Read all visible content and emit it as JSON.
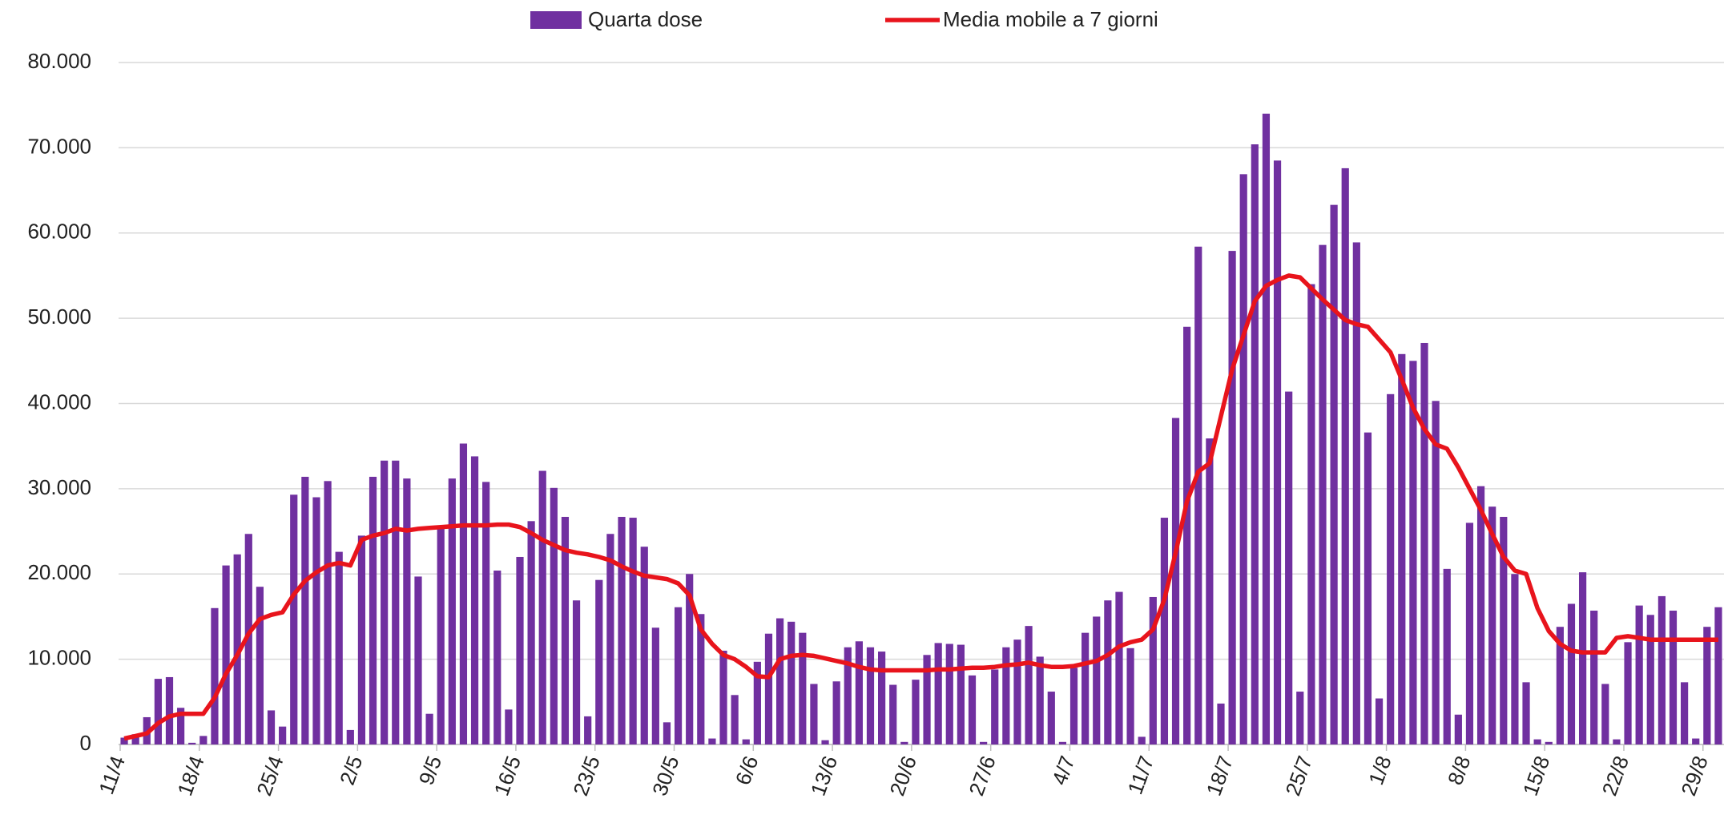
{
  "chart_data": {
    "type": "bar_line",
    "categories": [
      "11/4",
      null,
      null,
      null,
      null,
      null,
      null,
      "18/4",
      null,
      null,
      null,
      null,
      null,
      null,
      "25/4",
      null,
      null,
      null,
      null,
      null,
      null,
      "2/5",
      null,
      null,
      null,
      null,
      null,
      null,
      "9/5",
      null,
      null,
      null,
      null,
      null,
      null,
      "16/5",
      null,
      null,
      null,
      null,
      null,
      null,
      "23/5",
      null,
      null,
      null,
      null,
      null,
      null,
      "30/5",
      null,
      null,
      null,
      null,
      null,
      null,
      "6/6",
      null,
      null,
      null,
      null,
      null,
      null,
      "13/6",
      null,
      null,
      null,
      null,
      null,
      null,
      "20/6",
      null,
      null,
      null,
      null,
      null,
      null,
      "27/6",
      null,
      null,
      null,
      null,
      null,
      null,
      "4/7",
      null,
      null,
      null,
      null,
      null,
      null,
      "11/7",
      null,
      null,
      null,
      null,
      null,
      null,
      "18/7",
      null,
      null,
      null,
      null,
      null,
      null,
      "25/7",
      null,
      null,
      null,
      null,
      null,
      null,
      "1/8",
      null,
      null,
      null,
      null,
      null,
      null,
      "8/8",
      null,
      null,
      null,
      null,
      null,
      null,
      "15/8",
      null,
      null,
      null,
      null,
      null,
      null,
      "22/8",
      null,
      null,
      null,
      null,
      null,
      null,
      "29/8",
      null
    ],
    "series": [
      {
        "name": "Quarta dose",
        "type": "bar",
        "color": "#7030a0",
        "values": [
          800,
          1200,
          3200,
          7700,
          7900,
          4300,
          200,
          1000,
          16000,
          21000,
          22300,
          24700,
          18500,
          4000,
          2100,
          29300,
          31400,
          29000,
          30900,
          22600,
          1700,
          24500,
          31400,
          33300,
          33300,
          31200,
          19700,
          3600,
          25500,
          31200,
          35300,
          33800,
          30800,
          20400,
          4100,
          22000,
          26200,
          32100,
          30100,
          26700,
          16900,
          3300,
          19300,
          24700,
          26700,
          26600,
          23200,
          13700,
          2600,
          16100,
          20000,
          15300,
          700,
          11000,
          5800,
          600,
          9700,
          13000,
          14800,
          14400,
          13100,
          7100,
          500,
          7400,
          11400,
          12100,
          11400,
          10900,
          7000,
          300,
          7600,
          10500,
          11900,
          11800,
          11700,
          8100,
          300,
          8800,
          11400,
          12300,
          13900,
          10300,
          6200,
          300,
          9000,
          13100,
          15000,
          16900,
          17900,
          11300,
          900,
          17300,
          26600,
          38300,
          49000,
          58400,
          35900,
          4800,
          57900,
          66900,
          70400,
          74000,
          68500,
          41400,
          6200,
          54000,
          58600,
          63300,
          67600,
          58900,
          36600,
          5400,
          41100,
          45800,
          45000,
          47100,
          40300,
          20600,
          3500,
          26000,
          30300,
          27900,
          26700,
          20000,
          7300,
          600,
          300,
          13800,
          16500,
          20200,
          15700,
          7100,
          600,
          12000,
          16300,
          15200,
          17400,
          15700,
          7300,
          700,
          13800,
          16100
        ]
      },
      {
        "name": "Media mobile a 7 giorni",
        "type": "line",
        "color": "#e8141c",
        "values": [
          700,
          1000,
          1300,
          2500,
          3300,
          3600,
          3600,
          3600,
          5500,
          8300,
          10500,
          13000,
          14700,
          15200,
          15500,
          17600,
          19200,
          20200,
          21000,
          21300,
          21000,
          24000,
          24500,
          24800,
          25300,
          25100,
          25300,
          25400,
          25500,
          25600,
          25700,
          25700,
          25700,
          25800,
          25800,
          25500,
          24800,
          24000,
          23400,
          22800,
          22500,
          22300,
          22000,
          21600,
          20900,
          20300,
          19800,
          19600,
          19400,
          18900,
          17500,
          13500,
          11800,
          10500,
          10000,
          9100,
          8000,
          7900,
          10000,
          10400,
          10500,
          10400,
          10100,
          9800,
          9500,
          9100,
          8800,
          8700,
          8700,
          8700,
          8700,
          8700,
          8800,
          8800,
          8900,
          9000,
          9000,
          9100,
          9300,
          9400,
          9600,
          9300,
          9100,
          9100,
          9200,
          9500,
          9800,
          10500,
          11500,
          12000,
          12300,
          13500,
          17000,
          22500,
          28500,
          32000,
          33000,
          38500,
          44000,
          48000,
          52000,
          53800,
          54500,
          55000,
          54800,
          53500,
          52200,
          51000,
          49800,
          49300,
          49000,
          47500,
          46000,
          42800,
          39500,
          37000,
          35200,
          34700,
          32500,
          30000,
          27500,
          24700,
          22000,
          20400,
          20000,
          16000,
          13300,
          11800,
          11000,
          10800,
          10800,
          10800,
          12500,
          12700,
          12500,
          12300,
          12300,
          12300,
          12300,
          12300,
          12300,
          12300
        ]
      }
    ],
    "ylim": [
      0,
      80000
    ],
    "yticks": [
      0,
      {
        "value": 10000,
        "label": "10.000"
      },
      {
        "value": 20000,
        "label": "20.000"
      },
      {
        "value": 30000,
        "label": "30.000"
      },
      {
        "value": 40000,
        "label": "40.000"
      },
      {
        "value": 50000,
        "label": "50.000"
      },
      {
        "value": 60000,
        "label": "60.000"
      },
      {
        "value": 70000,
        "label": "70.000"
      },
      {
        "value": 80000,
        "label": "80.000"
      }
    ],
    "grid": true,
    "legend": "top"
  }
}
